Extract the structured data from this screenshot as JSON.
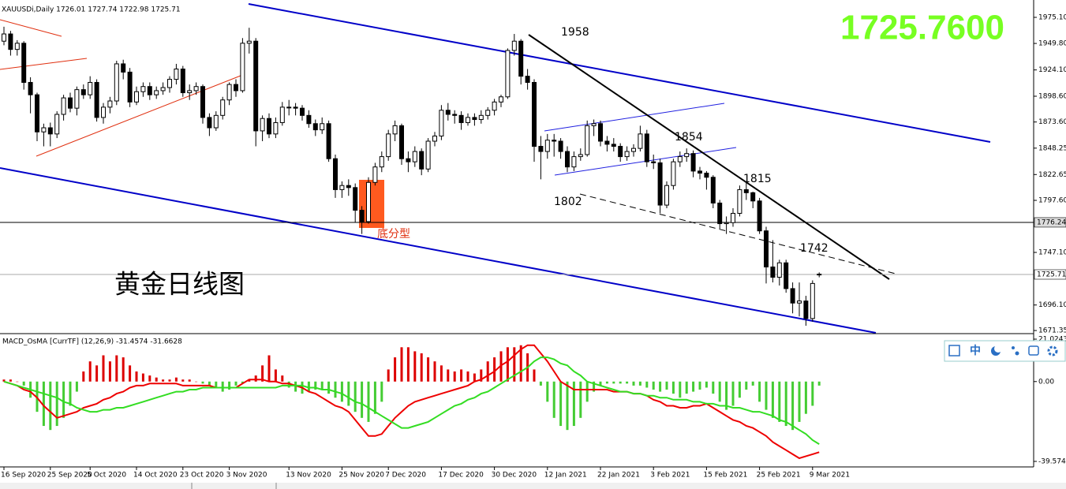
{
  "chart_data": [
    {
      "type": "candlestick",
      "title": "XAUUSDi,Daily  1726.01 1727.74 1722.98 1725.71",
      "quote": "1725.7600",
      "caption": "黄金日线图",
      "pattern_label": "底分型",
      "annotations": [
        "1958",
        "1854",
        "1815",
        "1802",
        "1742"
      ],
      "categories": [
        "16 Sep 2020",
        null,
        null,
        null,
        null,
        null,
        null,
        "25 Sep 2020",
        null,
        null,
        null,
        null,
        null,
        "5 Oct 2020",
        null,
        null,
        null,
        null,
        null,
        null,
        "14 Oct 2020",
        null,
        null,
        null,
        null,
        null,
        null,
        "23 Oct 2020",
        null,
        null,
        null,
        null,
        null,
        null,
        "3 Nov 2020",
        null,
        null,
        null,
        null,
        null,
        null,
        null,
        null,
        "13 Nov 2020",
        null,
        null,
        null,
        null,
        null,
        null,
        null,
        "25 Nov 2020",
        null,
        null,
        null,
        null,
        null,
        null,
        "7 Dec 2020",
        null,
        null,
        null,
        null,
        null,
        null,
        null,
        "17 Dec 2020",
        null,
        null,
        null,
        null,
        null,
        null,
        null,
        "30 Dec 2020",
        null,
        null,
        null,
        null,
        null,
        null,
        null,
        "12 Jan 2021",
        null,
        null,
        null,
        null,
        null,
        null,
        null,
        "22 Jan 2021",
        null,
        null,
        null,
        null,
        null,
        null,
        null,
        "3 Feb 2021",
        null,
        null,
        null,
        null,
        null,
        null,
        null,
        "15 Feb 2021",
        null,
        null,
        null,
        null,
        null,
        null,
        null,
        "25 Feb 2021",
        null,
        null,
        null,
        null,
        null,
        null,
        null,
        "9 Mar 2021",
        null
      ],
      "ohlc": [
        [
          1952,
          1966,
          1948,
          1959
        ],
        [
          1959,
          1962,
          1938,
          1944
        ],
        [
          1944,
          1953,
          1938,
          1950
        ],
        [
          1950,
          1952,
          1905,
          1912
        ],
        [
          1912,
          1917,
          1882,
          1900
        ],
        [
          1900,
          1902,
          1855,
          1864
        ],
        [
          1864,
          1872,
          1850,
          1868
        ],
        [
          1868,
          1873,
          1850,
          1862
        ],
        [
          1862,
          1884,
          1858,
          1881
        ],
        [
          1881,
          1900,
          1875,
          1897
        ],
        [
          1897,
          1902,
          1883,
          1887
        ],
        [
          1887,
          1908,
          1880,
          1905
        ],
        [
          1905,
          1910,
          1896,
          1900
        ],
        [
          1900,
          1918,
          1896,
          1912
        ],
        [
          1912,
          1915,
          1874,
          1878
        ],
        [
          1878,
          1892,
          1872,
          1888
        ],
        [
          1888,
          1898,
          1882,
          1894
        ],
        [
          1894,
          1933,
          1890,
          1930
        ],
        [
          1930,
          1934,
          1915,
          1922
        ],
        [
          1922,
          1926,
          1888,
          1893
        ],
        [
          1893,
          1908,
          1890,
          1903
        ],
        [
          1903,
          1912,
          1898,
          1908
        ],
        [
          1908,
          1912,
          1895,
          1900
        ],
        [
          1900,
          1908,
          1896,
          1904
        ],
        [
          1904,
          1912,
          1900,
          1907
        ],
        [
          1907,
          1918,
          1902,
          1915
        ],
        [
          1915,
          1930,
          1910,
          1925
        ],
        [
          1925,
          1928,
          1898,
          1902
        ],
        [
          1902,
          1910,
          1895,
          1904
        ],
        [
          1904,
          1912,
          1900,
          1908
        ],
        [
          1908,
          1910,
          1872,
          1878
        ],
        [
          1878,
          1882,
          1860,
          1868
        ],
        [
          1868,
          1884,
          1865,
          1880
        ],
        [
          1880,
          1898,
          1876,
          1895
        ],
        [
          1895,
          1912,
          1890,
          1910
        ],
        [
          1910,
          1915,
          1898,
          1904
        ],
        [
          1904,
          1955,
          1902,
          1950
        ],
        [
          1950,
          1965,
          1940,
          1952
        ],
        [
          1952,
          1955,
          1850,
          1865
        ],
        [
          1865,
          1880,
          1855,
          1877
        ],
        [
          1877,
          1882,
          1858,
          1862
        ],
        [
          1862,
          1878,
          1858,
          1873
        ],
        [
          1873,
          1893,
          1870,
          1888
        ],
        [
          1888,
          1895,
          1880,
          1888
        ],
        [
          1888,
          1892,
          1880,
          1887
        ],
        [
          1887,
          1890,
          1875,
          1880
        ],
        [
          1880,
          1885,
          1868,
          1872
        ],
        [
          1872,
          1876,
          1860,
          1866
        ],
        [
          1866,
          1878,
          1862,
          1872
        ],
        [
          1872,
          1875,
          1835,
          1838
        ],
        [
          1838,
          1842,
          1800,
          1808
        ],
        [
          1808,
          1816,
          1800,
          1812
        ],
        [
          1812,
          1818,
          1802,
          1810
        ],
        [
          1810,
          1814,
          1776,
          1788
        ],
        [
          1788,
          1792,
          1765,
          1777
        ],
        [
          1777,
          1820,
          1775,
          1815
        ],
        [
          1815,
          1834,
          1812,
          1830
        ],
        [
          1830,
          1845,
          1825,
          1840
        ],
        [
          1840,
          1866,
          1836,
          1862
        ],
        [
          1862,
          1875,
          1855,
          1870
        ],
        [
          1870,
          1872,
          1832,
          1838
        ],
        [
          1838,
          1845,
          1825,
          1835
        ],
        [
          1835,
          1850,
          1830,
          1845
        ],
        [
          1845,
          1848,
          1822,
          1828
        ],
        [
          1828,
          1858,
          1825,
          1855
        ],
        [
          1855,
          1864,
          1850,
          1860
        ],
        [
          1860,
          1890,
          1856,
          1885
        ],
        [
          1885,
          1892,
          1875,
          1881
        ],
        [
          1881,
          1885,
          1872,
          1880
        ],
        [
          1880,
          1884,
          1866,
          1873
        ],
        [
          1873,
          1882,
          1870,
          1878
        ],
        [
          1878,
          1882,
          1870,
          1876
        ],
        [
          1876,
          1885,
          1872,
          1880
        ],
        [
          1880,
          1888,
          1876,
          1885
        ],
        [
          1885,
          1896,
          1880,
          1893
        ],
        [
          1893,
          1900,
          1888,
          1898
        ],
        [
          1898,
          1945,
          1896,
          1943
        ],
        [
          1943,
          1959,
          1938,
          1952
        ],
        [
          1952,
          1954,
          1910,
          1918
        ],
        [
          1918,
          1925,
          1905,
          1912
        ],
        [
          1912,
          1915,
          1835,
          1850
        ],
        [
          1850,
          1860,
          1818,
          1845
        ],
        [
          1845,
          1862,
          1838,
          1856
        ],
        [
          1856,
          1862,
          1840,
          1855
        ],
        [
          1855,
          1858,
          1838,
          1845
        ],
        [
          1845,
          1850,
          1825,
          1830
        ],
        [
          1830,
          1845,
          1826,
          1840
        ],
        [
          1840,
          1848,
          1836,
          1842
        ],
        [
          1842,
          1875,
          1840,
          1870
        ],
        [
          1870,
          1876,
          1860,
          1872
        ],
        [
          1872,
          1875,
          1850,
          1855
        ],
        [
          1855,
          1860,
          1845,
          1852
        ],
        [
          1852,
          1858,
          1845,
          1850
        ],
        [
          1850,
          1853,
          1835,
          1840
        ],
        [
          1840,
          1850,
          1836,
          1845
        ],
        [
          1845,
          1852,
          1840,
          1848
        ],
        [
          1848,
          1870,
          1845,
          1862
        ],
        [
          1862,
          1866,
          1830,
          1835
        ],
        [
          1835,
          1842,
          1828,
          1834
        ],
        [
          1834,
          1838,
          1785,
          1793
        ],
        [
          1793,
          1816,
          1790,
          1812
        ],
        [
          1812,
          1838,
          1808,
          1835
        ],
        [
          1835,
          1845,
          1830,
          1840
        ],
        [
          1840,
          1848,
          1835,
          1843
        ],
        [
          1843,
          1846,
          1820,
          1826
        ],
        [
          1826,
          1830,
          1818,
          1824
        ],
        [
          1824,
          1826,
          1808,
          1820
        ],
        [
          1820,
          1822,
          1790,
          1795
        ],
        [
          1795,
          1798,
          1770,
          1775
        ],
        [
          1775,
          1782,
          1765,
          1776
        ],
        [
          1776,
          1790,
          1772,
          1785
        ],
        [
          1785,
          1812,
          1782,
          1808
        ],
        [
          1808,
          1815,
          1798,
          1805
        ],
        [
          1805,
          1806,
          1790,
          1797
        ],
        [
          1797,
          1800,
          1765,
          1768
        ],
        [
          1768,
          1772,
          1717,
          1733
        ],
        [
          1733,
          1759,
          1718,
          1723
        ],
        [
          1723,
          1740,
          1715,
          1737
        ],
        [
          1737,
          1740,
          1708,
          1712
        ],
        [
          1712,
          1718,
          1688,
          1698
        ],
        [
          1698,
          1718,
          1685,
          1700
        ],
        [
          1700,
          1705,
          1676,
          1683
        ],
        [
          1683,
          1720,
          1680,
          1717
        ],
        [
          1726.01,
          1727.74,
          1722.98,
          1725.71
        ]
      ],
      "up_color": "#ffffff",
      "down_color": "#000000",
      "ylim": [
        1669.1,
        1990.4
      ],
      "yticks": [
        {
          "value": 1975.1,
          "label": "1975.10"
        },
        {
          "value": 1949.8,
          "label": "1949.80"
        },
        {
          "value": 1924.1,
          "label": "1924.10"
        },
        {
          "value": 1898.6,
          "label": "1898.60"
        },
        {
          "value": 1873.6,
          "label": "1873.60"
        },
        1848.25,
        1822.65,
        {
          "value": 1797.6,
          "label": "1797.60"
        },
        {
          "value": 1747.1,
          "label": "1747.10"
        },
        {
          "value": 1696.1,
          "label": "1696.10"
        },
        1671.35
      ],
      "price_lines": [
        1776.24,
        1725.71
      ]
    },
    {
      "type": "macd",
      "title": "MACD_OsMA [CurrTF] (12,26,9) -31.4574 -31.6628",
      "values": [
        1,
        1,
        0,
        -2,
        -8,
        -15,
        -22,
        -24,
        -22,
        -18,
        -12,
        -5,
        5,
        10,
        8,
        13,
        10,
        13,
        12,
        8,
        5,
        4,
        3,
        2,
        1,
        1,
        2,
        1,
        1,
        0,
        -1,
        -2,
        -3,
        -5,
        -4,
        -2,
        -1,
        1,
        3,
        8,
        13,
        6,
        3,
        -3,
        -5,
        -6,
        -5,
        -4,
        -4,
        -6,
        -8,
        -10,
        -12,
        -15,
        -18,
        -20,
        -16,
        -10,
        6,
        12,
        17,
        17,
        15,
        14,
        12,
        10,
        8,
        6,
        5,
        6,
        5,
        4,
        6,
        10,
        12,
        15,
        17,
        17,
        18,
        14,
        6,
        -2,
        -10,
        -18,
        -22,
        -24,
        -22,
        -18,
        -10,
        -5,
        -2,
        -1,
        -1,
        -1,
        -1,
        -2,
        -2,
        -3,
        -4,
        -5,
        -4,
        -6,
        -8,
        -6,
        -5,
        -4,
        -3,
        -6,
        -10,
        -14,
        -12,
        -8,
        -4,
        -2,
        -10,
        -14,
        -18,
        -20,
        -22,
        -24,
        -20,
        -16,
        -12,
        -2
      ],
      "up_color": "#dd0000",
      "down_color": "#44cc33",
      "series": [
        {
          "color": "#ee0000",
          "values": [
            0,
            -1,
            -2,
            -4,
            -5,
            -8,
            -12,
            -15,
            -18,
            -17,
            -16,
            -15,
            -13,
            -12,
            -11,
            -9,
            -8,
            -6,
            -5,
            -3,
            -2,
            -2,
            -1,
            -1,
            -1,
            -1,
            -1,
            -2,
            -2,
            -2,
            -2,
            -2,
            -3,
            -3,
            -3,
            -3,
            -1,
            1,
            1,
            1,
            0,
            0,
            -1,
            -1,
            -2,
            -3,
            -5,
            -6,
            -8,
            -10,
            -12,
            -13,
            -15,
            -19,
            -23,
            -27,
            -27,
            -26,
            -22,
            -18,
            -15,
            -12,
            -10,
            -9,
            -8,
            -7,
            -6,
            -5,
            -4,
            -3,
            -2,
            0,
            1,
            3,
            5,
            8,
            10,
            13,
            16,
            18,
            18,
            14,
            10,
            5,
            0,
            -2,
            -4,
            -4,
            -4,
            -4,
            -4,
            -4,
            -5,
            -5,
            -5,
            -6,
            -6,
            -7,
            -9,
            -10,
            -12,
            -12,
            -13,
            -13,
            -12,
            -12,
            -11,
            -13,
            -15,
            -17,
            -19,
            -20,
            -22,
            -23,
            -25,
            -27,
            -30,
            -32,
            -34,
            -36,
            -38,
            -37,
            -36,
            -35
          ]
        },
        {
          "color": "#33dd22",
          "values": [
            0,
            -1,
            -2,
            -3,
            -4,
            -5,
            -6,
            -7,
            -8,
            -10,
            -11,
            -13,
            -14,
            -15,
            -15,
            -14,
            -14,
            -13,
            -13,
            -12,
            -11,
            -10,
            -9,
            -8,
            -7,
            -6,
            -5,
            -5,
            -4,
            -4,
            -3,
            -3,
            -3,
            -3,
            -3,
            -3,
            -3,
            -3,
            -3,
            -3,
            -3,
            -3,
            -2,
            -2,
            -2,
            -2,
            -3,
            -3,
            -4,
            -4,
            -5,
            -6,
            -8,
            -10,
            -11,
            -13,
            -15,
            -17,
            -19,
            -21,
            -23,
            -23,
            -22,
            -21,
            -20,
            -18,
            -16,
            -14,
            -12,
            -11,
            -9,
            -8,
            -6,
            -5,
            -3,
            -1,
            1,
            3,
            5,
            7,
            10,
            12,
            12,
            11,
            9,
            8,
            5,
            3,
            0,
            -1,
            -2,
            -3,
            -4,
            -5,
            -5,
            -6,
            -6,
            -7,
            -7,
            -8,
            -8,
            -9,
            -9,
            -9,
            -10,
            -10,
            -11,
            -11,
            -12,
            -12,
            -13,
            -13,
            -14,
            -15,
            -15,
            -16,
            -17,
            -19,
            -20,
            -22,
            -24,
            -26,
            -29,
            -31
          ]
        }
      ],
      "ylim": [
        -42.31,
        23.37
      ],
      "yticks": [
        21.0243,
        {
          "value": 0,
          "label": "0.00"
        },
        -39.5745
      ]
    }
  ],
  "toolbar": {
    "label": "中"
  }
}
